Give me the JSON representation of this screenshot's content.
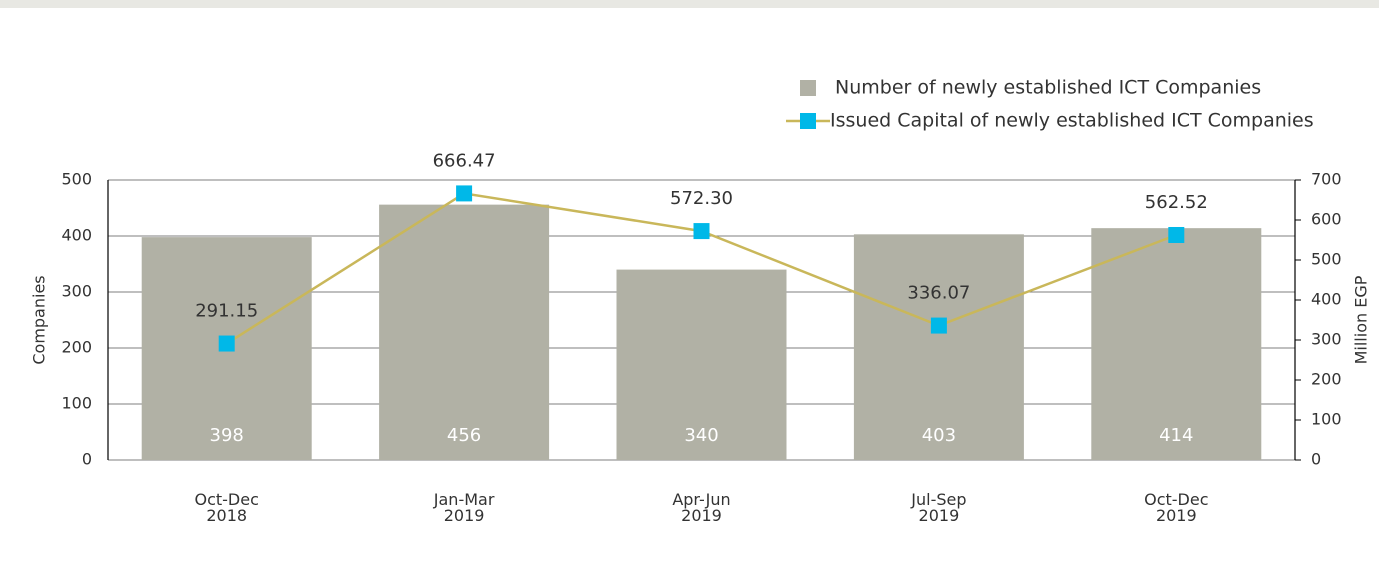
{
  "chart_data": {
    "type": "bar-line",
    "categories": [
      "Oct-Dec\n2018",
      "Jan-Mar\n2019",
      "Apr-Jun\n2019",
      "Jul-Sep\n2019",
      "Oct-Dec\n2019"
    ],
    "series": [
      {
        "name": "Number of newly established ICT Companies",
        "type": "bar",
        "color": "#b1b1a5",
        "values": [
          398,
          456,
          340,
          403,
          414
        ]
      },
      {
        "name": "Issued Capital of newly established ICT Companies",
        "type": "line",
        "axis": "y2",
        "color": "#c9b75a",
        "marker_color": "#00b8e8",
        "values": [
          291.15,
          666.47,
          572.3,
          336.07,
          562.52
        ],
        "value_labels": [
          "291.15",
          "666.47",
          "572.30",
          "336.07",
          "562.52"
        ]
      }
    ],
    "y_label": "Companies",
    "y2_label": "Million EGP",
    "ylim": [
      0,
      500
    ],
    "yticks": [
      0,
      100,
      200,
      300,
      400,
      500
    ],
    "y2lim": [
      0,
      700
    ],
    "y2ticks": [
      0,
      100,
      200,
      300,
      400,
      500,
      600,
      700
    ],
    "grid": true
  }
}
